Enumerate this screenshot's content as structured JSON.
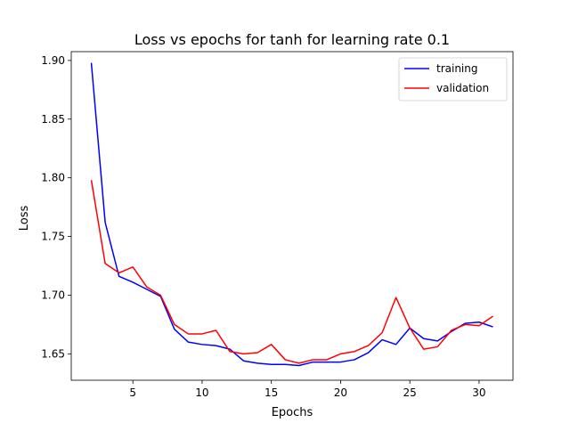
{
  "chart_data": {
    "type": "line",
    "title": "Loss vs epochs for tanh for learning rate 0.1",
    "xlabel": "Epochs",
    "ylabel": "Loss",
    "xlim": [
      0.55,
      32.45
    ],
    "ylim": [
      1.6275,
      1.9075
    ],
    "xticks": [
      5,
      10,
      15,
      20,
      25,
      30
    ],
    "yticks": [
      1.65,
      1.7,
      1.75,
      1.8,
      1.85,
      1.9
    ],
    "ytick_labels": [
      "1.65",
      "1.70",
      "1.75",
      "1.80",
      "1.85",
      "1.90"
    ],
    "grid": false,
    "legend_position": "top-right",
    "x": [
      2,
      3,
      4,
      5,
      6,
      7,
      8,
      9,
      10,
      11,
      12,
      13,
      14,
      15,
      16,
      17,
      18,
      19,
      20,
      21,
      22,
      23,
      24,
      25,
      26,
      27,
      28,
      29,
      30,
      31
    ],
    "series": [
      {
        "name": "training",
        "color": "#0000ff",
        "values": [
          1.898,
          1.762,
          1.716,
          1.711,
          1.705,
          1.699,
          1.671,
          1.66,
          1.658,
          1.657,
          1.654,
          1.644,
          1.642,
          1.641,
          1.641,
          1.64,
          1.643,
          1.643,
          1.643,
          1.645,
          1.651,
          1.662,
          1.658,
          1.672,
          1.663,
          1.661,
          1.669,
          1.676,
          1.677,
          1.673
        ]
      },
      {
        "name": "validation",
        "color": "#ff0000",
        "values": [
          1.798,
          1.727,
          1.719,
          1.724,
          1.707,
          1.7,
          1.675,
          1.667,
          1.667,
          1.67,
          1.652,
          1.65,
          1.651,
          1.658,
          1.645,
          1.642,
          1.645,
          1.645,
          1.65,
          1.652,
          1.657,
          1.668,
          1.698,
          1.672,
          1.654,
          1.656,
          1.67,
          1.675,
          1.674,
          1.682
        ]
      }
    ]
  }
}
